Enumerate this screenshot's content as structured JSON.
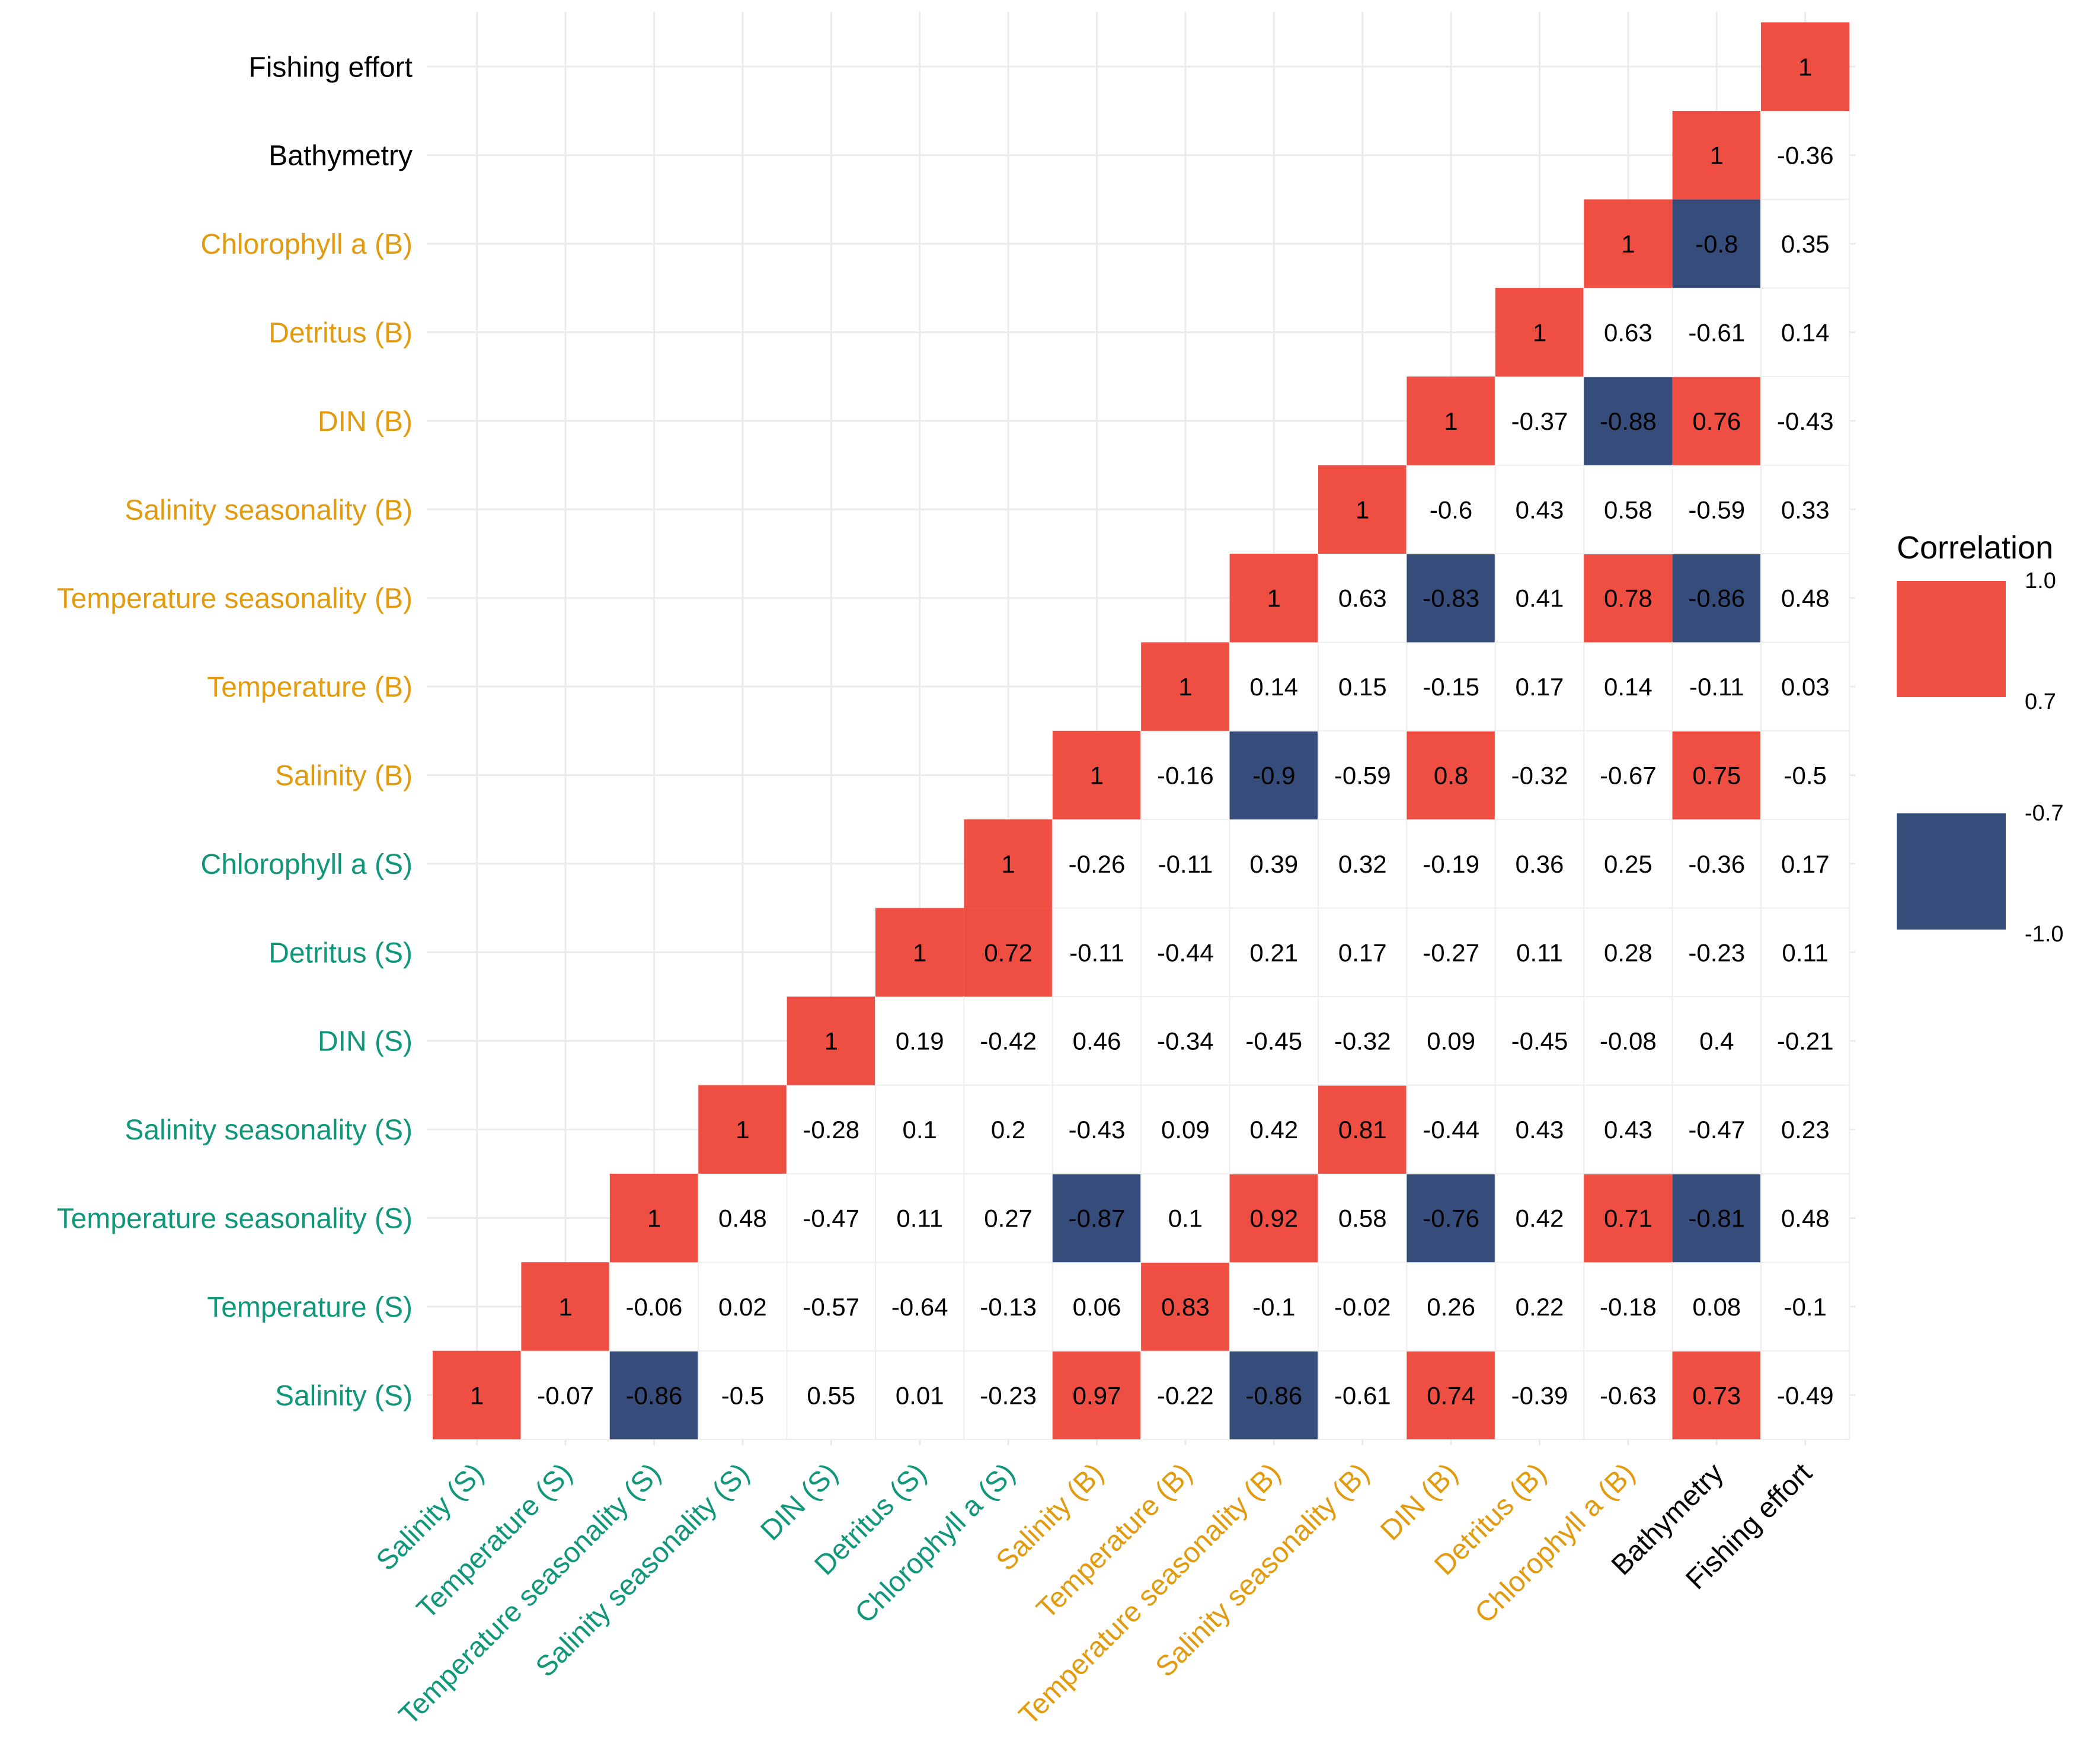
{
  "chart_data": {
    "type": "heatmap",
    "title": "",
    "xlabel": "",
    "ylabel": "",
    "variables": [
      "Salinity (S)",
      "Temperature (S)",
      "Temperature seasonality (S)",
      "Salinity seasonality (S)",
      "DIN (S)",
      "Detritus (S)",
      "Chlorophyll a (S)",
      "Salinity (B)",
      "Temperature (B)",
      "Temperature seasonality (B)",
      "Salinity seasonality (B)",
      "DIN (B)",
      "Detritus (B)",
      "Chlorophyll a (B)",
      "Bathymetry",
      "Fishing effort"
    ],
    "variable_groups": [
      "S",
      "S",
      "S",
      "S",
      "S",
      "S",
      "S",
      "B",
      "B",
      "B",
      "B",
      "B",
      "B",
      "B",
      "other",
      "other"
    ],
    "group_colors": {
      "S": "#10977A",
      "B": "#E29A0E",
      "other": "#000000"
    },
    "matrix": [
      [
        1
      ],
      [
        -0.07,
        1
      ],
      [
        -0.86,
        -0.06,
        1
      ],
      [
        -0.5,
        0.02,
        0.48,
        1
      ],
      [
        0.55,
        -0.57,
        -0.47,
        -0.28,
        1
      ],
      [
        0.01,
        -0.64,
        0.11,
        0.1,
        0.19,
        1
      ],
      [
        -0.23,
        -0.13,
        0.27,
        0.2,
        -0.42,
        0.72,
        1
      ],
      [
        0.97,
        0.06,
        -0.87,
        -0.43,
        0.46,
        -0.11,
        -0.26,
        1
      ],
      [
        -0.22,
        0.83,
        0.1,
        0.09,
        -0.34,
        -0.44,
        -0.11,
        -0.16,
        1
      ],
      [
        -0.86,
        -0.1,
        0.92,
        0.42,
        -0.45,
        0.21,
        0.39,
        -0.9,
        0.14,
        1
      ],
      [
        -0.61,
        -0.02,
        0.58,
        0.81,
        -0.32,
        0.17,
        0.32,
        -0.59,
        0.15,
        0.63,
        1
      ],
      [
        0.74,
        0.26,
        -0.76,
        -0.44,
        0.09,
        -0.27,
        -0.19,
        0.8,
        -0.15,
        -0.83,
        -0.6,
        1
      ],
      [
        -0.39,
        0.22,
        0.42,
        0.43,
        -0.45,
        0.11,
        0.36,
        -0.32,
        0.17,
        0.41,
        0.43,
        -0.37,
        1
      ],
      [
        -0.63,
        -0.18,
        0.71,
        0.43,
        -0.08,
        0.28,
        0.25,
        -0.67,
        0.14,
        0.78,
        0.58,
        -0.88,
        0.63,
        1
      ],
      [
        0.73,
        0.08,
        -0.81,
        -0.47,
        0.4,
        -0.23,
        -0.36,
        0.75,
        -0.11,
        -0.86,
        -0.59,
        0.76,
        -0.61,
        -0.8,
        1
      ],
      [
        -0.49,
        -0.1,
        0.48,
        0.23,
        -0.21,
        0.11,
        0.17,
        -0.5,
        0.03,
        0.48,
        0.33,
        -0.43,
        0.14,
        0.35,
        -0.36,
        1
      ]
    ],
    "color_scale": [
      {
        "range": [
          0.7,
          1.0
        ],
        "color": "#EF4E43",
        "label_top": "1.0",
        "label_bottom": "0.7"
      },
      {
        "range": [
          -1.0,
          -0.7
        ],
        "color": "#364D7C",
        "label_top": "-0.7",
        "label_bottom": "-1.0"
      }
    ],
    "neutral_color": "#FFFFFF",
    "legend": {
      "title": "Correlation",
      "position": "right"
    },
    "grid": true
  }
}
